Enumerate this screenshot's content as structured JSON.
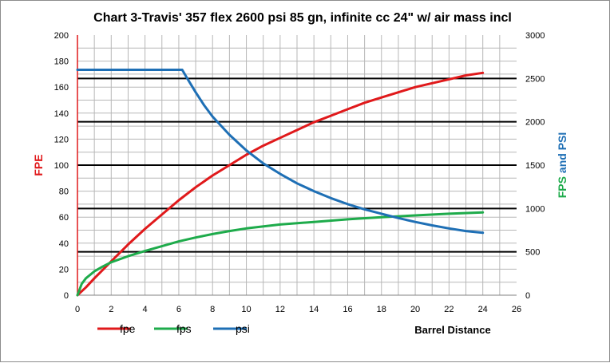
{
  "chart_data": {
    "type": "line",
    "title": "Chart 3-Travis' 357 flex 2600 psi 85 gn, infinite cc 24\" w/ air mass incl",
    "xlabel": "Barrel Distance",
    "ylabel_left": "FPE",
    "ylabel_right": "FPS and PSI",
    "ylabel_right_parts": [
      "FPS",
      "and PSI"
    ],
    "xlim": [
      0,
      26
    ],
    "ylim_left": [
      0,
      200
    ],
    "ylim_right": [
      0,
      3000
    ],
    "x_ticks": [
      "0",
      "2",
      "4",
      "6",
      "8",
      "10",
      "12",
      "14",
      "16",
      "18",
      "20",
      "22",
      "24",
      "26"
    ],
    "y_left_ticks": [
      "0",
      "20",
      "40",
      "60",
      "80",
      "100",
      "120",
      "140",
      "160",
      "180",
      "200"
    ],
    "y_right_ticks": [
      "0",
      "500",
      "1000",
      "1500",
      "2000",
      "2500",
      "3000"
    ],
    "grid": true,
    "legend_position": "bottom-left",
    "series": [
      {
        "name": "fpe",
        "axis": "left",
        "color": "#e0191b",
        "x": [
          0,
          0.5,
          1,
          2,
          3,
          4,
          5,
          6,
          7,
          8,
          9,
          10,
          11,
          12,
          13,
          14,
          15,
          16,
          17,
          18,
          19,
          20,
          21,
          22,
          23,
          24
        ],
        "y": [
          0,
          6,
          13,
          26,
          39,
          51,
          62,
          73,
          83,
          92,
          100,
          108,
          115,
          121,
          127,
          133,
          138,
          143,
          148,
          152,
          156,
          160,
          163,
          166,
          169,
          171
        ]
      },
      {
        "name": "fps",
        "axis": "right",
        "color": "#1eab4b",
        "x": [
          0,
          0.25,
          0.5,
          1,
          1.5,
          2,
          3,
          4,
          5,
          6,
          7,
          8,
          9,
          10,
          12,
          14,
          16,
          18,
          20,
          22,
          24
        ],
        "y": [
          0,
          130,
          195,
          275,
          330,
          380,
          450,
          510,
          565,
          620,
          665,
          705,
          740,
          770,
          815,
          845,
          875,
          900,
          920,
          940,
          955
        ]
      },
      {
        "name": "psi",
        "axis": "right",
        "color": "#1e6fb5",
        "x": [
          0,
          1,
          2,
          3,
          4,
          5,
          6,
          6.2,
          6.5,
          7,
          7.5,
          8,
          9,
          10,
          11,
          12,
          13,
          14,
          15,
          16,
          17,
          18,
          19,
          20,
          21,
          22,
          23,
          24
        ],
        "y": [
          2600,
          2600,
          2600,
          2600,
          2600,
          2600,
          2600,
          2600,
          2500,
          2340,
          2190,
          2060,
          1850,
          1670,
          1520,
          1400,
          1290,
          1200,
          1120,
          1050,
          990,
          940,
          890,
          845,
          805,
          770,
          740,
          720
        ]
      }
    ]
  }
}
